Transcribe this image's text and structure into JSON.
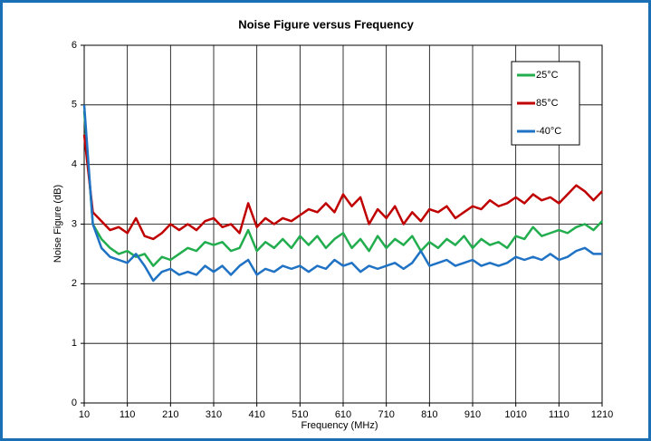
{
  "chart_data": {
    "type": "line",
    "title": "Noise Figure versus Frequency",
    "x_label": "Frequency (MHz)",
    "y_label": "Noise Figure (dB)",
    "x": [
      10,
      30,
      50,
      70,
      90,
      110,
      130,
      150,
      170,
      190,
      210,
      230,
      250,
      270,
      290,
      310,
      330,
      350,
      370,
      390,
      410,
      430,
      450,
      470,
      490,
      510,
      530,
      550,
      570,
      590,
      610,
      630,
      650,
      670,
      690,
      710,
      730,
      750,
      770,
      790,
      810,
      830,
      850,
      870,
      890,
      910,
      930,
      950,
      970,
      990,
      1010,
      1030,
      1050,
      1070,
      1090,
      1110,
      1130,
      1150,
      1170,
      1190,
      1210
    ],
    "series": [
      {
        "name": "25°C",
        "color": "#22ad4e",
        "values": [
          4.9,
          3.0,
          2.75,
          2.6,
          2.5,
          2.55,
          2.45,
          2.5,
          2.3,
          2.45,
          2.4,
          2.5,
          2.6,
          2.55,
          2.7,
          2.65,
          2.7,
          2.55,
          2.6,
          2.9,
          2.55,
          2.7,
          2.6,
          2.75,
          2.6,
          2.8,
          2.65,
          2.8,
          2.6,
          2.75,
          2.85,
          2.6,
          2.75,
          2.55,
          2.8,
          2.6,
          2.75,
          2.65,
          2.8,
          2.55,
          2.7,
          2.6,
          2.75,
          2.65,
          2.8,
          2.6,
          2.75,
          2.65,
          2.7,
          2.6,
          2.8,
          2.75,
          2.95,
          2.8,
          2.85,
          2.9,
          2.85,
          2.95,
          3.0,
          2.9,
          3.05
        ]
      },
      {
        "name": "85°C",
        "color": "#c00000",
        "values": [
          4.5,
          3.2,
          3.05,
          2.9,
          2.95,
          2.85,
          3.1,
          2.8,
          2.75,
          2.85,
          3.0,
          2.9,
          3.0,
          2.9,
          3.05,
          3.1,
          2.95,
          3.0,
          2.85,
          3.35,
          2.95,
          3.1,
          3.0,
          3.1,
          3.05,
          3.15,
          3.25,
          3.2,
          3.35,
          3.2,
          3.5,
          3.3,
          3.45,
          3.0,
          3.25,
          3.1,
          3.3,
          3.0,
          3.2,
          3.05,
          3.25,
          3.2,
          3.3,
          3.1,
          3.2,
          3.3,
          3.25,
          3.4,
          3.3,
          3.35,
          3.45,
          3.35,
          3.5,
          3.4,
          3.45,
          3.35,
          3.5,
          3.65,
          3.55,
          3.4,
          3.55
        ]
      },
      {
        "name": "-40°C",
        "color": "#1f72c4",
        "values": [
          5.0,
          3.0,
          2.6,
          2.45,
          2.4,
          2.35,
          2.5,
          2.3,
          2.05,
          2.2,
          2.25,
          2.15,
          2.2,
          2.15,
          2.3,
          2.2,
          2.3,
          2.15,
          2.3,
          2.4,
          2.15,
          2.25,
          2.2,
          2.3,
          2.25,
          2.3,
          2.2,
          2.3,
          2.25,
          2.4,
          2.3,
          2.35,
          2.2,
          2.3,
          2.25,
          2.3,
          2.35,
          2.25,
          2.35,
          2.55,
          2.3,
          2.35,
          2.4,
          2.3,
          2.35,
          2.4,
          2.3,
          2.35,
          2.3,
          2.35,
          2.45,
          2.4,
          2.45,
          2.4,
          2.5,
          2.4,
          2.45,
          2.55,
          2.6,
          2.5,
          2.5
        ]
      }
    ],
    "xlim": [
      10,
      1210
    ],
    "xticks": [
      10,
      110,
      210,
      310,
      410,
      510,
      610,
      710,
      810,
      910,
      1010,
      1110,
      1210
    ],
    "ylim": [
      0,
      6
    ],
    "yticks": [
      0,
      1,
      2,
      3,
      4,
      5,
      6
    ],
    "grid": true,
    "legend": "upper right"
  }
}
